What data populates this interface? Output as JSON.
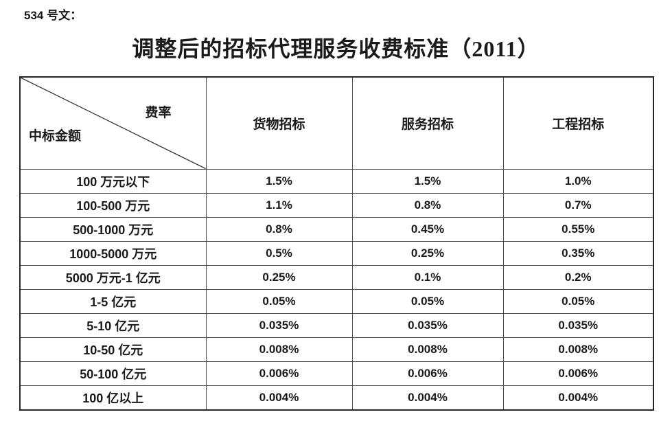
{
  "page": {
    "doc_label": "534 号文：",
    "title": "调整后的招标代理服务收费标准（2011）"
  },
  "table": {
    "corner": {
      "rate_label": "费率",
      "amount_label": "中标金额"
    },
    "columns": [
      "货物招标",
      "服务招标",
      "工程招标"
    ],
    "rows": [
      {
        "label": "100 万元以下",
        "values": [
          "1.5%",
          "1.5%",
          "1.0%"
        ]
      },
      {
        "label": "100-500 万元",
        "values": [
          "1.1%",
          "0.8%",
          "0.7%"
        ]
      },
      {
        "label": "500-1000 万元",
        "values": [
          "0.8%",
          "0.45%",
          "0.55%"
        ]
      },
      {
        "label": "1000-5000 万元",
        "values": [
          "0.5%",
          "0.25%",
          "0.35%"
        ]
      },
      {
        "label": "5000 万元-1 亿元",
        "values": [
          "0.25%",
          "0.1%",
          "0.2%"
        ]
      },
      {
        "label": "1-5 亿元",
        "values": [
          "0.05%",
          "0.05%",
          "0.05%"
        ]
      },
      {
        "label": "5-10 亿元",
        "values": [
          "0.035%",
          "0.035%",
          "0.035%"
        ]
      },
      {
        "label": "10-50 亿元",
        "values": [
          "0.008%",
          "0.008%",
          "0.008%"
        ]
      },
      {
        "label": "50-100 亿元",
        "values": [
          "0.006%",
          "0.006%",
          "0.006%"
        ]
      },
      {
        "label": "100 亿以上",
        "values": [
          "0.004%",
          "0.004%",
          "0.004%"
        ]
      }
    ]
  },
  "colors": {
    "text": "#1a1a1a",
    "grid_border": "#4d4d4d",
    "outer_border": "#262626",
    "background": "#ffffff"
  }
}
